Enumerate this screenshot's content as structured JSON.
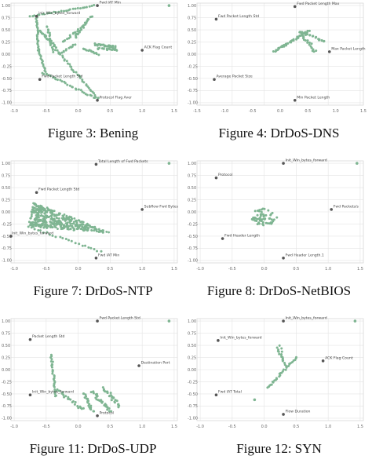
{
  "figures": [
    {
      "caption": "Figure 3: Bening",
      "chart_data": {
        "type": "scatter",
        "xlim": [
          -1.05,
          1.55
        ],
        "ylim": [
          -1.05,
          1.05
        ],
        "xticks": [
          "-1.0",
          "-0.5",
          "0.0",
          "0.5",
          "1.0",
          "1.5"
        ],
        "yticks": [
          "1.00",
          "0.75",
          "0.50",
          "0.25",
          "0.00",
          "-0.25",
          "-0.50",
          "-0.75",
          "-1.00"
        ],
        "grid": true,
        "clusters": [
          {
            "kind": "line",
            "x0": -0.75,
            "y0": 0.78,
            "x1": 0.25,
            "y1": 1.0,
            "n": 28,
            "w": 0.02
          },
          {
            "kind": "line",
            "x0": -0.65,
            "y0": 0.75,
            "x1": -0.62,
            "y1": 0.08,
            "n": 25,
            "w": 0.02
          },
          {
            "kind": "line",
            "x0": -0.62,
            "y0": 0.5,
            "x1": -0.35,
            "y1": 0.15,
            "n": 24,
            "w": 0.03
          },
          {
            "kind": "line",
            "x0": -0.48,
            "y0": 0.58,
            "x1": -0.4,
            "y1": 0.05,
            "n": 18,
            "w": 0.03
          },
          {
            "kind": "line",
            "x0": -0.55,
            "y0": -0.38,
            "x1": 0.3,
            "y1": -0.92,
            "n": 30,
            "w": 0.03
          },
          {
            "kind": "line",
            "x0": -0.62,
            "y0": 0.08,
            "x1": -0.5,
            "y1": -0.4,
            "n": 16,
            "w": 0.02
          },
          {
            "kind": "line",
            "x0": -0.35,
            "y0": 0.1,
            "x1": 0.3,
            "y1": -0.9,
            "n": 36,
            "w": 0.03
          },
          {
            "kind": "line",
            "x0": -0.28,
            "y0": 0.02,
            "x1": -0.05,
            "y1": 0.2,
            "n": 12,
            "w": 0.03
          },
          {
            "kind": "line",
            "x0": -0.25,
            "y0": 0.25,
            "x1": 0.0,
            "y1": 0.5,
            "n": 12,
            "w": 0.03
          },
          {
            "kind": "line",
            "x0": -0.05,
            "y0": 0.35,
            "x1": 0.2,
            "y1": 0.78,
            "n": 26,
            "w": 0.04
          },
          {
            "kind": "line",
            "x0": 0.08,
            "y0": 0.12,
            "x1": 0.32,
            "y1": 0.0,
            "n": 14,
            "w": 0.03
          },
          {
            "kind": "line",
            "x0": 0.25,
            "y0": 0.2,
            "x1": 0.58,
            "y1": 0.15,
            "n": 24,
            "w": 0.04
          },
          {
            "kind": "line",
            "x0": 0.3,
            "y0": 0.12,
            "x1": 0.6,
            "y1": 0.08,
            "n": 14,
            "w": 0.03
          },
          {
            "kind": "line",
            "x0": 0.6,
            "y0": 0.08,
            "x1": 0.5,
            "y1": 0.15,
            "n": 6,
            "w": 0.02
          }
        ],
        "points": [
          {
            "x": -0.65,
            "y": 0.78,
            "label": "inir_Win_bytes_forward"
          },
          {
            "x": 0.3,
            "y": 1.0,
            "label": "Fwd IAT Min"
          },
          {
            "x": 1.0,
            "y": 0.08,
            "label": "ACK Flag Count"
          },
          {
            "x": -0.6,
            "y": -0.52,
            "label": "Fwd Packet Length Std"
          },
          {
            "x": 0.3,
            "y": -0.95,
            "label": "Protocol Flag Aver"
          },
          {
            "x": 1.42,
            "y": 1.0,
            "label": ""
          }
        ]
      }
    },
    {
      "caption": "Figure 4: DrDoS-DNS",
      "chart_data": {
        "type": "scatter",
        "xlim": [
          -1.05,
          1.55
        ],
        "ylim": [
          -1.05,
          1.05
        ],
        "xticks": [
          "-1.5",
          "-1.0",
          "-0.5",
          "0.0",
          "0.5",
          "1.0",
          "1.5"
        ],
        "yticks": [
          "1.00",
          "0.75",
          "0.50",
          "0.25",
          "0.00",
          "-0.25",
          "-0.50",
          "-0.75",
          "-1.00"
        ],
        "grid": true,
        "clusters": [
          {
            "kind": "line",
            "x0": 0.15,
            "y0": 0.05,
            "x1": 0.7,
            "y1": 0.48,
            "n": 40,
            "w": 0.03
          },
          {
            "kind": "line",
            "x0": 0.55,
            "y0": 0.48,
            "x1": 0.8,
            "y1": 0.05,
            "n": 22,
            "w": 0.05
          },
          {
            "kind": "line",
            "x0": 0.6,
            "y0": 0.45,
            "x1": 0.95,
            "y1": 0.25,
            "n": 18,
            "w": 0.04
          }
        ],
        "points": [
          {
            "x": -0.75,
            "y": 0.72,
            "label": "Fwd Packet Length Std"
          },
          {
            "x": 0.48,
            "y": 0.98,
            "label": "Fwd Packet Length Max"
          },
          {
            "x": 1.02,
            "y": 0.05,
            "label": "Max Packet Length"
          },
          {
            "x": -0.78,
            "y": -0.52,
            "label": "Average Packet Size"
          },
          {
            "x": 0.48,
            "y": -0.95,
            "label": "Min Packet Length"
          }
        ]
      }
    },
    {
      "caption": "Figure 7: DrDoS-NTP",
      "chart_data": {
        "type": "scatter",
        "xlim": [
          -1.05,
          1.55
        ],
        "ylim": [
          -1.05,
          1.05
        ],
        "xticks": [
          "-1.0",
          "-0.5",
          "0.0",
          "0.5",
          "1.0",
          "1.5"
        ],
        "yticks": [
          "1.00",
          "0.75",
          "0.50",
          "0.25",
          "0.00",
          "-0.25",
          "-0.50",
          "-0.75",
          "-1.00"
        ],
        "grid": true,
        "clusters": [
          {
            "kind": "fan",
            "x0": -0.78,
            "y0": -0.3,
            "xs": [
              -0.7,
              0.55
            ],
            "ys": [
              0.2,
              -0.45
            ],
            "n": 420
          },
          {
            "kind": "line",
            "x0": -0.78,
            "y0": -0.3,
            "x1": 0.35,
            "y1": -0.82,
            "n": 24,
            "w": 0.03
          }
        ],
        "points": [
          {
            "x": 0.28,
            "y": 0.98,
            "label": "Total Length of Fwd Packets"
          },
          {
            "x": -0.65,
            "y": 0.4,
            "label": "Fwd Packet Length Std"
          },
          {
            "x": 1.0,
            "y": 0.05,
            "label": "Subflow Fwd Bytes"
          },
          {
            "x": -1.05,
            "y": -0.5,
            "label": "Init_Win_bytes_forward"
          },
          {
            "x": 0.28,
            "y": -0.95,
            "label": "Fwd IAT Min"
          },
          {
            "x": 1.42,
            "y": 1.0,
            "label": ""
          }
        ]
      }
    },
    {
      "caption": "Figure 8: DrDoS-NetBIOS",
      "chart_data": {
        "type": "scatter",
        "xlim": [
          -1.05,
          1.55
        ],
        "ylim": [
          -1.05,
          1.05
        ],
        "xticks": [
          "-1.0",
          "-0.5",
          "0.0",
          "0.5",
          "1.0",
          "1.5"
        ],
        "yticks": [
          "1.00",
          "0.75",
          "0.50",
          "0.25",
          "0.00",
          "-0.25",
          "-0.50",
          "-0.75",
          "-1.00"
        ],
        "grid": true,
        "clusters": [
          {
            "kind": "blob",
            "cx": 0.0,
            "cy": -0.1,
            "rx": 0.2,
            "ry": 0.18,
            "n": 60
          }
        ],
        "points": [
          {
            "x": -0.75,
            "y": 0.7,
            "label": "Protocol"
          },
          {
            "x": 0.3,
            "y": 1.0,
            "label": "Init_Win_bytes_forward"
          },
          {
            "x": 1.05,
            "y": 0.05,
            "label": "Fwd Packets/s"
          },
          {
            "x": -0.65,
            "y": -0.55,
            "label": "Fwd Header Length"
          },
          {
            "x": 0.3,
            "y": -0.95,
            "label": "Fwd Header Length.1"
          },
          {
            "x": 1.45,
            "y": 1.0,
            "label": ""
          }
        ]
      }
    },
    {
      "caption": "Figure 11: DrDoS-UDP",
      "chart_data": {
        "type": "scatter",
        "xlim": [
          -1.05,
          1.55
        ],
        "ylim": [
          -1.05,
          1.05
        ],
        "xticks": [
          "-1.0",
          "-0.5",
          "0.0",
          "0.5",
          "1.0",
          "1.5"
        ],
        "yticks": [
          "1.00",
          "0.75",
          "0.50",
          "0.25",
          "0.00",
          "-0.25",
          "-0.50",
          "-0.75",
          "-1.00"
        ],
        "grid": true,
        "clusters": [
          {
            "kind": "line",
            "x0": -0.42,
            "y0": 0.3,
            "x1": -0.35,
            "y1": -0.55,
            "n": 30,
            "w": 0.03
          },
          {
            "kind": "line",
            "x0": -0.35,
            "y0": -0.4,
            "x1": 0.08,
            "y1": -0.82,
            "n": 24,
            "w": 0.05
          },
          {
            "kind": "line",
            "x0": 0.1,
            "y0": -0.5,
            "x1": 0.22,
            "y1": -0.85,
            "n": 20,
            "w": 0.05
          },
          {
            "kind": "line",
            "x0": 0.22,
            "y0": -0.45,
            "x1": 0.5,
            "y1": -0.85,
            "n": 30,
            "w": 0.06
          },
          {
            "kind": "line",
            "x0": 0.4,
            "y0": -0.38,
            "x1": 0.65,
            "y1": -0.75,
            "n": 26,
            "w": 0.06
          }
        ],
        "points": [
          {
            "x": 0.3,
            "y": 1.0,
            "label": "Fwd Packet Length Std"
          },
          {
            "x": -0.75,
            "y": 0.62,
            "label": "Packet Length Std"
          },
          {
            "x": 0.95,
            "y": 0.08,
            "label": "Destination Port"
          },
          {
            "x": -0.75,
            "y": -0.52,
            "label": "Init_Win_bytes_forward"
          },
          {
            "x": 0.3,
            "y": -0.95,
            "label": "Protocol"
          },
          {
            "x": 1.42,
            "y": 1.0,
            "label": ""
          }
        ]
      }
    },
    {
      "caption": "Figure 12: SYN",
      "chart_data": {
        "type": "scatter",
        "xlim": [
          -1.05,
          1.55
        ],
        "ylim": [
          -1.05,
          1.05
        ],
        "xticks": [
          "-1.0",
          "-0.5",
          "0.0",
          "0.5",
          "1.0",
          "1.5"
        ],
        "yticks": [
          "1.00",
          "0.75",
          "0.50",
          "0.25",
          "0.00",
          "-0.25",
          "-0.50",
          "-0.75",
          "-1.00"
        ],
        "grid": true,
        "clusters": [
          {
            "kind": "line",
            "x0": 0.05,
            "y0": -0.38,
            "x1": 0.5,
            "y1": 0.25,
            "n": 30,
            "w": 0.03
          },
          {
            "kind": "line",
            "x0": 0.2,
            "y0": 0.45,
            "x1": 0.35,
            "y1": 0.05,
            "n": 14,
            "w": 0.03
          },
          {
            "kind": "line",
            "x0": 0.25,
            "y0": 0.5,
            "x1": 0.3,
            "y1": 0.2,
            "n": 6,
            "w": 0.03
          }
        ],
        "points": [
          {
            "x": -0.72,
            "y": 0.6,
            "label": "Init_Win_bytes_forward"
          },
          {
            "x": 0.3,
            "y": 1.0,
            "label": "Init_Win_bytes_forward"
          },
          {
            "x": 0.92,
            "y": 0.18,
            "label": "ACK Flag Count"
          },
          {
            "x": -0.75,
            "y": -0.52,
            "label": "Fwd IAT Total"
          },
          {
            "x": 0.3,
            "y": -0.92,
            "label": "Flow Duration"
          },
          {
            "x": -0.15,
            "y": -0.62,
            "label": ""
          },
          {
            "x": 1.42,
            "y": 1.0,
            "label": ""
          }
        ]
      }
    }
  ],
  "colors": {
    "point": "#7fb592",
    "label_point": "#555555",
    "grid": "#e4e4e4",
    "axis": "#d8d8d8",
    "tick": "#666666"
  }
}
